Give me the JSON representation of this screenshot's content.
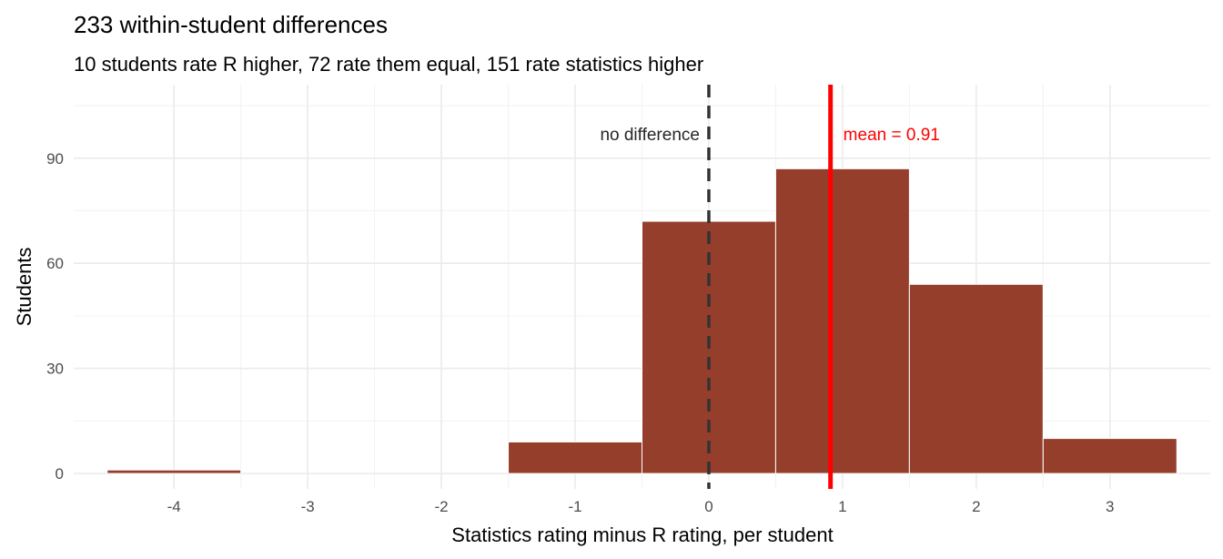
{
  "chart_data": {
    "type": "bar",
    "title": "233 within-student differences",
    "subtitle": "10 students rate R higher, 72 rate them equal, 151 rate statistics higher",
    "xlabel": "Statistics rating minus R rating, per student",
    "ylabel": "Students",
    "categories": [
      -4,
      -3,
      -2,
      -1,
      0,
      1,
      2,
      3
    ],
    "values": [
      1,
      0,
      0,
      9,
      72,
      87,
      54,
      10
    ],
    "bin_width": 1,
    "xlim": [
      -4.75,
      3.75
    ],
    "ylim": [
      -4.4,
      111
    ],
    "x_ticks": [
      -4,
      -3,
      -2,
      -1,
      0,
      1,
      2,
      3
    ],
    "y_ticks": [
      0,
      30,
      60,
      90
    ],
    "grid": true,
    "bar_color": "#963E2C",
    "reference_lines": [
      {
        "x": 0,
        "style": "dashed",
        "color": "#333333",
        "label": "no difference",
        "label_side": "left"
      },
      {
        "x": 0.91,
        "style": "solid",
        "color": "#FF0000",
        "label": "mean = 0.91",
        "label_side": "right"
      }
    ],
    "annotation_y": 97
  }
}
